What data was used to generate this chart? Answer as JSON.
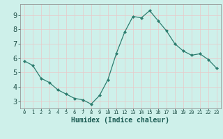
{
  "x": [
    0,
    1,
    2,
    3,
    4,
    5,
    6,
    7,
    8,
    9,
    10,
    11,
    12,
    13,
    14,
    15,
    16,
    17,
    18,
    19,
    20,
    21,
    22,
    23
  ],
  "y": [
    5.8,
    5.5,
    4.6,
    4.3,
    3.8,
    3.5,
    3.2,
    3.1,
    2.8,
    3.4,
    4.5,
    6.3,
    7.8,
    8.9,
    8.8,
    9.3,
    8.6,
    7.9,
    7.0,
    6.5,
    6.2,
    6.3,
    5.9,
    5.3
  ],
  "line_color": "#2d7d6f",
  "marker": "D",
  "marker_size": 2.0,
  "bg_color": "#cef0ea",
  "grid_color_minor": "#e8c8c8",
  "grid_color_major": "#d0a8a8",
  "xlabel": "Humidex (Indice chaleur)",
  "xlabel_fontsize": 7,
  "ytick_fontsize": 7,
  "xtick_fontsize": 5,
  "ylabel_ticks": [
    3,
    4,
    5,
    6,
    7,
    8,
    9
  ],
  "xtick_labels": [
    "0",
    "1",
    "2",
    "3",
    "4",
    "5",
    "6",
    "7",
    "8",
    "9",
    "10",
    "11",
    "12",
    "13",
    "14",
    "15",
    "16",
    "17",
    "18",
    "19",
    "20",
    "21",
    "22",
    "23"
  ],
  "xlim": [
    -0.5,
    23.5
  ],
  "ylim": [
    2.5,
    9.75
  ]
}
